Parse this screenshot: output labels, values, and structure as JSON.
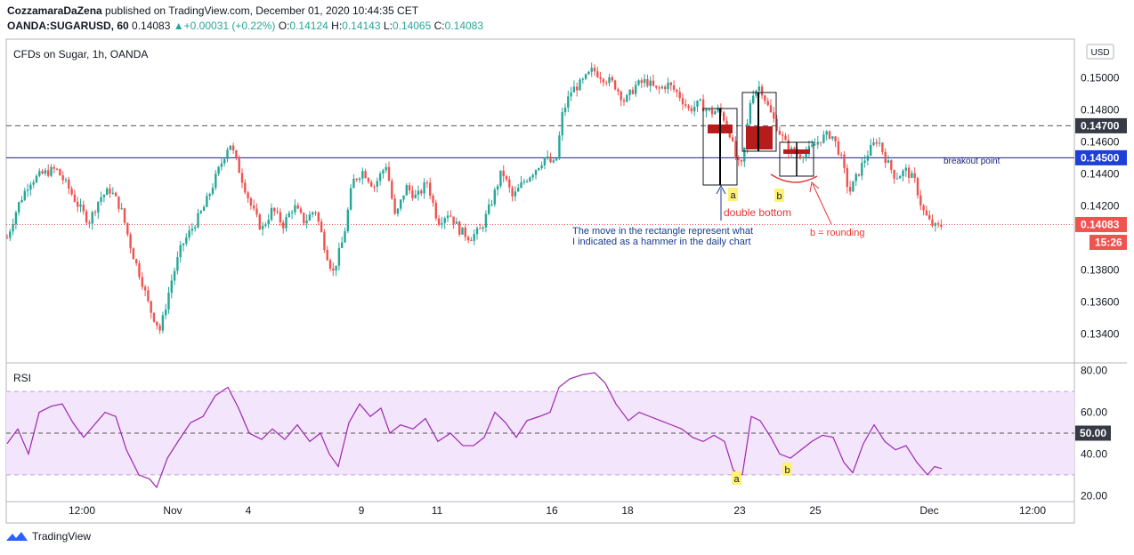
{
  "header": {
    "author": "CozzamaraDaZena",
    "published": " published on TradingView.com, December 01, 2020 10:44:35 CET",
    "symbol": "OANDA:SUGARUSD, 60",
    "last": "0.14083",
    "change_arrow": "▲",
    "change": "+0.00031 (+0.22%)",
    "o_label": "O:",
    "o_value": "0.14124",
    "h_label": "H:",
    "h_value": "0.14143",
    "l_label": "L:",
    "l_value": "0.14065",
    "c_label": "C:",
    "c_value": "0.14083"
  },
  "footer": {
    "brand": "TradingView",
    "logo_icon": "tradingview-logo-icon"
  },
  "colors": {
    "up": "#26a69a",
    "down": "#ef5350",
    "rsi_line": "#9c27b0",
    "rsi_band": "#f3e5fc",
    "breakout_line": "#1a237e",
    "annotation_red": "#e53935",
    "annotation_blue": "#1a3a8c"
  },
  "chart_data": {
    "type": "candlestick",
    "title": "CFDs on Sugar, 1h, OANDA",
    "currency": "USD",
    "x_ticks": [
      "12:00",
      "Nov",
      "4",
      "9",
      "11",
      "16",
      "18",
      "23",
      "25",
      "Dec",
      "12:00"
    ],
    "y_ticks": [
      "0.15000",
      "0.14800",
      "0.14600",
      "0.14400",
      "0.14200",
      "0.13800",
      "0.13600",
      "0.13400"
    ],
    "y_range": [
      0.1323,
      0.1523
    ],
    "price_labels": {
      "p1470": "0.14700",
      "p1450": "0.14500",
      "last": "0.14083",
      "countdown": "15:26"
    },
    "levels": {
      "resistance": 0.147,
      "breakout": 0.145,
      "last": 0.14083
    },
    "close_path": [
      {
        "x": 0,
        "y": 0.14
      },
      {
        "x": 12,
        "y": 0.142
      },
      {
        "x": 25,
        "y": 0.1435
      },
      {
        "x": 40,
        "y": 0.144
      },
      {
        "x": 55,
        "y": 0.1443
      },
      {
        "x": 68,
        "y": 0.1432
      },
      {
        "x": 80,
        "y": 0.142
      },
      {
        "x": 92,
        "y": 0.141
      },
      {
        "x": 104,
        "y": 0.1425
      },
      {
        "x": 116,
        "y": 0.143
      },
      {
        "x": 128,
        "y": 0.1418
      },
      {
        "x": 140,
        "y": 0.1392
      },
      {
        "x": 152,
        "y": 0.1372
      },
      {
        "x": 160,
        "y": 0.1356
      },
      {
        "x": 172,
        "y": 0.1342
      },
      {
        "x": 184,
        "y": 0.1372
      },
      {
        "x": 196,
        "y": 0.1395
      },
      {
        "x": 210,
        "y": 0.1408
      },
      {
        "x": 222,
        "y": 0.142
      },
      {
        "x": 236,
        "y": 0.144
      },
      {
        "x": 250,
        "y": 0.146
      },
      {
        "x": 262,
        "y": 0.144
      },
      {
        "x": 274,
        "y": 0.142
      },
      {
        "x": 286,
        "y": 0.1405
      },
      {
        "x": 298,
        "y": 0.1418
      },
      {
        "x": 310,
        "y": 0.1408
      },
      {
        "x": 322,
        "y": 0.142
      },
      {
        "x": 334,
        "y": 0.141
      },
      {
        "x": 346,
        "y": 0.1418
      },
      {
        "x": 358,
        "y": 0.1392
      },
      {
        "x": 366,
        "y": 0.1378
      },
      {
        "x": 378,
        "y": 0.14
      },
      {
        "x": 388,
        "y": 0.1435
      },
      {
        "x": 400,
        "y": 0.1442
      },
      {
        "x": 412,
        "y": 0.1432
      },
      {
        "x": 426,
        "y": 0.1446
      },
      {
        "x": 436,
        "y": 0.1412
      },
      {
        "x": 448,
        "y": 0.1432
      },
      {
        "x": 460,
        "y": 0.1425
      },
      {
        "x": 472,
        "y": 0.1435
      },
      {
        "x": 484,
        "y": 0.141
      },
      {
        "x": 496,
        "y": 0.1416
      },
      {
        "x": 508,
        "y": 0.1405
      },
      {
        "x": 520,
        "y": 0.14
      },
      {
        "x": 532,
        "y": 0.1405
      },
      {
        "x": 544,
        "y": 0.1422
      },
      {
        "x": 556,
        "y": 0.1442
      },
      {
        "x": 568,
        "y": 0.1425
      },
      {
        "x": 580,
        "y": 0.1435
      },
      {
        "x": 592,
        "y": 0.1442
      },
      {
        "x": 604,
        "y": 0.145
      },
      {
        "x": 616,
        "y": 0.1445
      },
      {
        "x": 624,
        "y": 0.1478
      },
      {
        "x": 634,
        "y": 0.1492
      },
      {
        "x": 646,
        "y": 0.1497
      },
      {
        "x": 658,
        "y": 0.1505
      },
      {
        "x": 670,
        "y": 0.15
      },
      {
        "x": 682,
        "y": 0.1496
      },
      {
        "x": 694,
        "y": 0.1485
      },
      {
        "x": 706,
        "y": 0.1495
      },
      {
        "x": 718,
        "y": 0.1498
      },
      {
        "x": 730,
        "y": 0.1492
      },
      {
        "x": 742,
        "y": 0.1496
      },
      {
        "x": 754,
        "y": 0.149
      },
      {
        "x": 766,
        "y": 0.148
      },
      {
        "x": 778,
        "y": 0.1484
      },
      {
        "x": 790,
        "y": 0.1478
      },
      {
        "x": 800,
        "y": 0.148
      },
      {
        "x": 810,
        "y": 0.147
      },
      {
        "x": 820,
        "y": 0.1446
      },
      {
        "x": 826,
        "y": 0.1445
      },
      {
        "x": 836,
        "y": 0.149
      },
      {
        "x": 846,
        "y": 0.1495
      },
      {
        "x": 856,
        "y": 0.148
      },
      {
        "x": 866,
        "y": 0.1468
      },
      {
        "x": 878,
        "y": 0.1455
      },
      {
        "x": 890,
        "y": 0.1452
      },
      {
        "x": 902,
        "y": 0.1455
      },
      {
        "x": 914,
        "y": 0.1462
      },
      {
        "x": 926,
        "y": 0.1465
      },
      {
        "x": 936,
        "y": 0.1452
      },
      {
        "x": 946,
        "y": 0.1428
      },
      {
        "x": 956,
        "y": 0.144
      },
      {
        "x": 966,
        "y": 0.1452
      },
      {
        "x": 978,
        "y": 0.1462
      },
      {
        "x": 988,
        "y": 0.1448
      },
      {
        "x": 998,
        "y": 0.1438
      },
      {
        "x": 1010,
        "y": 0.1442
      },
      {
        "x": 1020,
        "y": 0.1435
      },
      {
        "x": 1028,
        "y": 0.1418
      },
      {
        "x": 1036,
        "y": 0.141
      },
      {
        "x": 1044,
        "y": 0.1406
      },
      {
        "x": 1050,
        "y": 0.1408
      }
    ],
    "rsi": {
      "label": "RSI",
      "y_ticks": [
        "80.00",
        "60.00",
        "40.00",
        "20.00"
      ],
      "mid_label": "50.00",
      "range": [
        18,
        82
      ],
      "band": [
        30,
        70
      ],
      "points": [
        {
          "x": 0,
          "y": 45
        },
        {
          "x": 12,
          "y": 52
        },
        {
          "x": 24,
          "y": 40
        },
        {
          "x": 36,
          "y": 60
        },
        {
          "x": 50,
          "y": 63
        },
        {
          "x": 62,
          "y": 64
        },
        {
          "x": 74,
          "y": 55
        },
        {
          "x": 86,
          "y": 48
        },
        {
          "x": 98,
          "y": 54
        },
        {
          "x": 110,
          "y": 60
        },
        {
          "x": 122,
          "y": 58
        },
        {
          "x": 134,
          "y": 42
        },
        {
          "x": 148,
          "y": 30
        },
        {
          "x": 160,
          "y": 28
        },
        {
          "x": 168,
          "y": 24
        },
        {
          "x": 180,
          "y": 38
        },
        {
          "x": 192,
          "y": 46
        },
        {
          "x": 206,
          "y": 55
        },
        {
          "x": 220,
          "y": 58
        },
        {
          "x": 234,
          "y": 68
        },
        {
          "x": 248,
          "y": 72
        },
        {
          "x": 260,
          "y": 62
        },
        {
          "x": 272,
          "y": 50
        },
        {
          "x": 286,
          "y": 47
        },
        {
          "x": 298,
          "y": 52
        },
        {
          "x": 312,
          "y": 47
        },
        {
          "x": 326,
          "y": 54
        },
        {
          "x": 340,
          "y": 46
        },
        {
          "x": 352,
          "y": 50
        },
        {
          "x": 362,
          "y": 40
        },
        {
          "x": 372,
          "y": 34
        },
        {
          "x": 384,
          "y": 55
        },
        {
          "x": 396,
          "y": 64
        },
        {
          "x": 408,
          "y": 58
        },
        {
          "x": 420,
          "y": 62
        },
        {
          "x": 430,
          "y": 50
        },
        {
          "x": 442,
          "y": 54
        },
        {
          "x": 456,
          "y": 52
        },
        {
          "x": 470,
          "y": 57
        },
        {
          "x": 484,
          "y": 46
        },
        {
          "x": 498,
          "y": 50
        },
        {
          "x": 512,
          "y": 44
        },
        {
          "x": 524,
          "y": 44
        },
        {
          "x": 536,
          "y": 48
        },
        {
          "x": 548,
          "y": 60
        },
        {
          "x": 560,
          "y": 55
        },
        {
          "x": 572,
          "y": 48
        },
        {
          "x": 584,
          "y": 56
        },
        {
          "x": 598,
          "y": 58
        },
        {
          "x": 610,
          "y": 60
        },
        {
          "x": 620,
          "y": 72
        },
        {
          "x": 632,
          "y": 76
        },
        {
          "x": 646,
          "y": 78
        },
        {
          "x": 660,
          "y": 79
        },
        {
          "x": 672,
          "y": 74
        },
        {
          "x": 684,
          "y": 64
        },
        {
          "x": 698,
          "y": 56
        },
        {
          "x": 710,
          "y": 60
        },
        {
          "x": 722,
          "y": 58
        },
        {
          "x": 734,
          "y": 56
        },
        {
          "x": 746,
          "y": 54
        },
        {
          "x": 758,
          "y": 52
        },
        {
          "x": 770,
          "y": 48
        },
        {
          "x": 782,
          "y": 46
        },
        {
          "x": 794,
          "y": 49
        },
        {
          "x": 806,
          "y": 46
        },
        {
          "x": 816,
          "y": 32
        },
        {
          "x": 826,
          "y": 30
        },
        {
          "x": 836,
          "y": 58
        },
        {
          "x": 846,
          "y": 56
        },
        {
          "x": 858,
          "y": 48
        },
        {
          "x": 868,
          "y": 40
        },
        {
          "x": 880,
          "y": 38
        },
        {
          "x": 892,
          "y": 42
        },
        {
          "x": 904,
          "y": 46
        },
        {
          "x": 916,
          "y": 49
        },
        {
          "x": 928,
          "y": 48
        },
        {
          "x": 940,
          "y": 36
        },
        {
          "x": 950,
          "y": 31
        },
        {
          "x": 962,
          "y": 45
        },
        {
          "x": 974,
          "y": 54
        },
        {
          "x": 986,
          "y": 46
        },
        {
          "x": 998,
          "y": 42
        },
        {
          "x": 1010,
          "y": 44
        },
        {
          "x": 1022,
          "y": 36
        },
        {
          "x": 1034,
          "y": 30
        },
        {
          "x": 1042,
          "y": 34
        },
        {
          "x": 1050,
          "y": 33
        }
      ]
    },
    "annotations": {
      "breakout": "breakout point",
      "double_bottom": "double bottom",
      "rounding": "b = rounding",
      "note_line1": "The move in the rectangle represent what",
      "note_line2": "I indicated as a hammer in the daily chart",
      "tag_a": "a",
      "tag_b": "b"
    }
  }
}
